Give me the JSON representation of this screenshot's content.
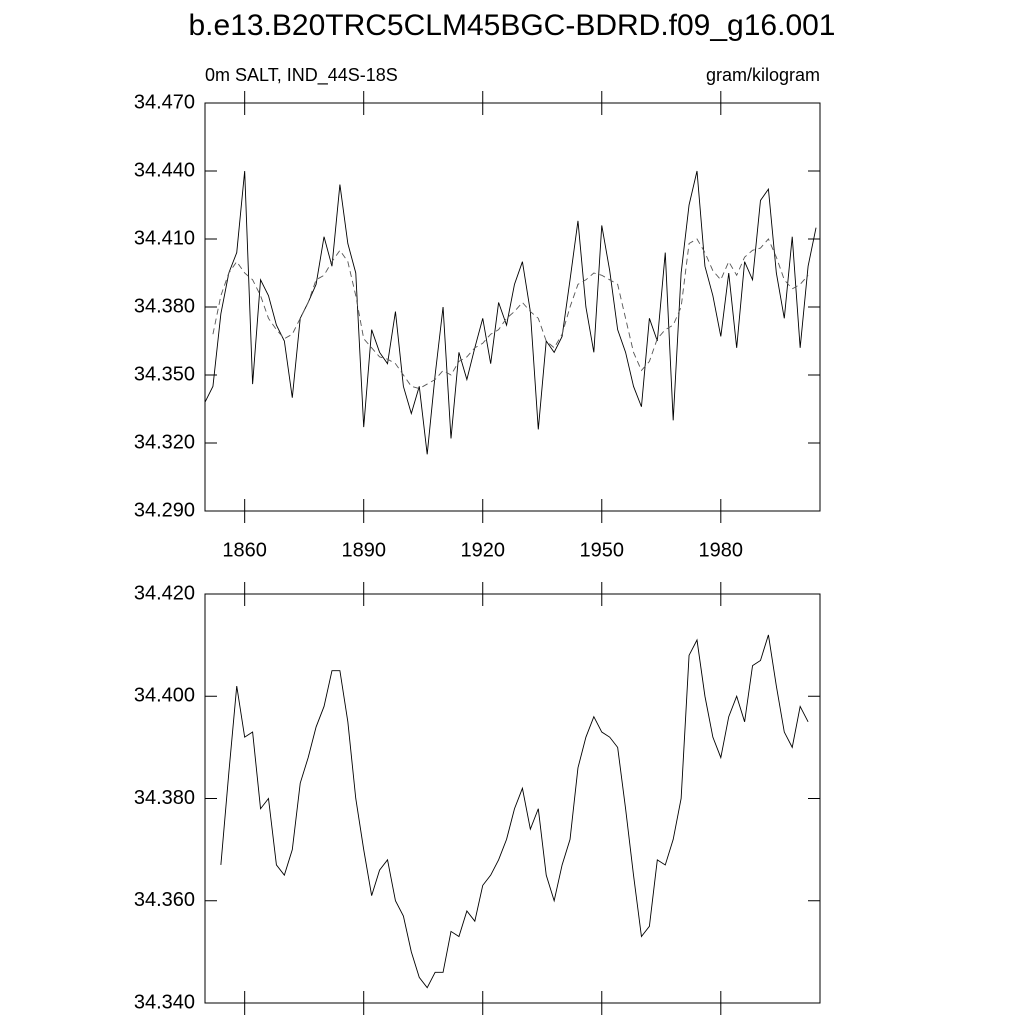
{
  "chart_data": [
    {
      "type": "line",
      "title": "b.e13.B20TRC5CLM45BGC-BDRD.f09_g16.001",
      "subtitle": "0m SALT, IND_44S-18S",
      "units": "gram/kilogram",
      "x": [
        1850,
        1852,
        1854,
        1856,
        1858,
        1860,
        1862,
        1864,
        1866,
        1868,
        1870,
        1872,
        1874,
        1876,
        1878,
        1880,
        1882,
        1884,
        1886,
        1888,
        1890,
        1892,
        1894,
        1896,
        1898,
        1900,
        1902,
        1904,
        1906,
        1908,
        1910,
        1912,
        1914,
        1916,
        1918,
        1920,
        1922,
        1924,
        1926,
        1928,
        1930,
        1932,
        1934,
        1936,
        1938,
        1940,
        1942,
        1944,
        1946,
        1948,
        1950,
        1952,
        1954,
        1956,
        1958,
        1960,
        1962,
        1964,
        1966,
        1968,
        1970,
        1972,
        1974,
        1976,
        1978,
        1980,
        1982,
        1984,
        1986,
        1988,
        1990,
        1992,
        1994,
        1996,
        1998,
        2000,
        2002,
        2004
      ],
      "series": [
        {
          "color": "#000000",
          "linestyle": "solid",
          "values": [
            34.338,
            34.345,
            34.377,
            34.395,
            34.404,
            34.44,
            34.346,
            34.392,
            34.385,
            34.372,
            34.365,
            34.34,
            34.375,
            34.382,
            34.39,
            34.411,
            34.398,
            34.434,
            34.408,
            34.395,
            34.327,
            34.37,
            34.36,
            34.355,
            34.378,
            34.345,
            34.333,
            34.345,
            34.315,
            34.35,
            34.38,
            34.322,
            34.36,
            34.348,
            34.362,
            34.375,
            34.355,
            34.382,
            34.372,
            34.39,
            34.4,
            34.378,
            34.326,
            34.365,
            34.36,
            34.367,
            34.392,
            34.418,
            34.38,
            34.36,
            34.416,
            34.396,
            34.37,
            34.36,
            34.345,
            34.336,
            34.375,
            34.365,
            34.404,
            34.33,
            34.395,
            34.425,
            34.44,
            34.398,
            34.385,
            34.367,
            34.395,
            34.362,
            34.4,
            34.392,
            34.427,
            34.432,
            34.395,
            34.375,
            34.411,
            34.362,
            34.398,
            34.415
          ]
        },
        {
          "color": "#555555",
          "linestyle": "dashed",
          "values": [
            null,
            34.368,
            34.385,
            34.395,
            34.4,
            34.395,
            34.392,
            34.385,
            34.375,
            34.37,
            34.366,
            34.368,
            34.375,
            34.382,
            34.392,
            34.394,
            34.4,
            34.405,
            34.4,
            34.385,
            34.366,
            34.362,
            34.358,
            34.357,
            34.355,
            34.35,
            34.345,
            34.344,
            34.346,
            34.348,
            34.352,
            34.35,
            34.356,
            34.358,
            34.362,
            34.364,
            34.368,
            34.37,
            34.375,
            34.378,
            34.382,
            34.378,
            34.375,
            34.365,
            34.362,
            34.368,
            34.38,
            34.39,
            34.392,
            34.395,
            34.394,
            34.392,
            34.39,
            34.375,
            34.36,
            34.352,
            34.356,
            34.366,
            34.37,
            34.372,
            34.38,
            34.408,
            34.41,
            34.404,
            34.396,
            34.392,
            34.4,
            34.394,
            34.402,
            34.405,
            34.406,
            34.41,
            34.402,
            34.392,
            34.388,
            34.39,
            34.394,
            null
          ]
        }
      ],
      "xlim": [
        1850,
        2005
      ],
      "xticks": [
        1860,
        1890,
        1920,
        1950,
        1980
      ],
      "show_xtick_labels": true,
      "ylim": [
        34.29,
        34.47
      ],
      "yticks": [
        {
          "value": 34.29,
          "label": "34.290"
        },
        {
          "value": 34.32,
          "label": "34.320"
        },
        {
          "value": 34.35,
          "label": "34.350"
        },
        {
          "value": 34.38,
          "label": "34.380"
        },
        {
          "value": 34.41,
          "label": "34.410"
        },
        {
          "value": 34.44,
          "label": "34.440"
        },
        {
          "value": 34.47,
          "label": "34.470"
        }
      ]
    },
    {
      "type": "line",
      "x": [
        1850,
        1852,
        1854,
        1856,
        1858,
        1860,
        1862,
        1864,
        1866,
        1868,
        1870,
        1872,
        1874,
        1876,
        1878,
        1880,
        1882,
        1884,
        1886,
        1888,
        1890,
        1892,
        1894,
        1896,
        1898,
        1900,
        1902,
        1904,
        1906,
        1908,
        1910,
        1912,
        1914,
        1916,
        1918,
        1920,
        1922,
        1924,
        1926,
        1928,
        1930,
        1932,
        1934,
        1936,
        1938,
        1940,
        1942,
        1944,
        1946,
        1948,
        1950,
        1952,
        1954,
        1956,
        1958,
        1960,
        1962,
        1964,
        1966,
        1968,
        1970,
        1972,
        1974,
        1976,
        1978,
        1980,
        1982,
        1984,
        1986,
        1988,
        1990,
        1992,
        1994,
        1996,
        1998,
        2000,
        2002,
        2004
      ],
      "series": [
        {
          "color": "#000000",
          "linestyle": "solid",
          "values": [
            null,
            null,
            34.367,
            34.385,
            34.402,
            34.392,
            34.393,
            34.378,
            34.38,
            34.367,
            34.365,
            34.37,
            34.383,
            34.388,
            34.394,
            34.398,
            34.405,
            34.405,
            34.395,
            34.38,
            34.37,
            34.361,
            34.366,
            34.368,
            34.36,
            34.357,
            34.35,
            34.345,
            34.343,
            34.346,
            34.346,
            34.354,
            34.353,
            34.358,
            34.356,
            34.363,
            34.365,
            34.368,
            34.372,
            34.378,
            34.382,
            34.374,
            34.378,
            34.365,
            34.36,
            34.367,
            34.372,
            34.386,
            34.392,
            34.396,
            34.393,
            34.392,
            34.39,
            34.378,
            34.365,
            34.353,
            34.355,
            34.368,
            34.367,
            34.372,
            34.38,
            34.408,
            34.411,
            34.4,
            34.392,
            34.388,
            34.396,
            34.4,
            34.395,
            34.406,
            34.407,
            34.412,
            34.402,
            34.393,
            34.39,
            34.398,
            34.395,
            null
          ]
        }
      ],
      "xlim": [
        1850,
        2005
      ],
      "xticks": [
        1860,
        1890,
        1920,
        1950,
        1980
      ],
      "show_xtick_labels": false,
      "ylim": [
        34.34,
        34.42
      ],
      "yticks": [
        {
          "value": 34.34,
          "label": "34.340"
        },
        {
          "value": 34.36,
          "label": "34.360"
        },
        {
          "value": 34.38,
          "label": "34.380"
        },
        {
          "value": 34.4,
          "label": "34.400"
        },
        {
          "value": 34.42,
          "label": "34.420"
        }
      ]
    }
  ]
}
